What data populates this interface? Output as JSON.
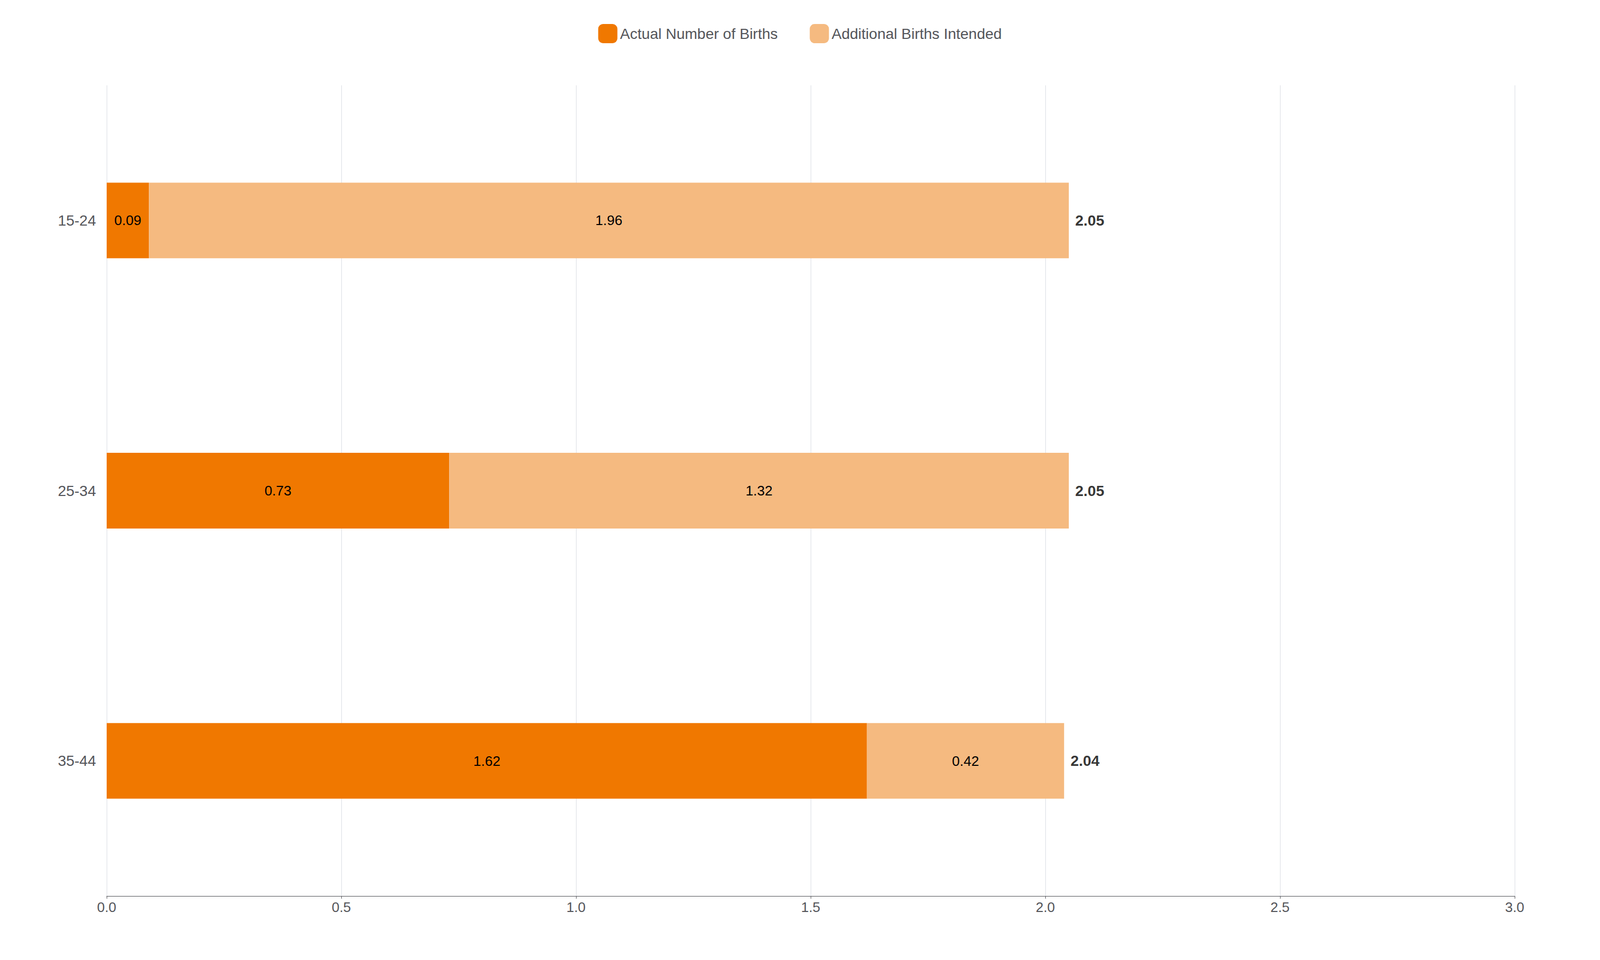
{
  "chart_data": {
    "type": "bar",
    "orientation": "horizontal",
    "stacked": true,
    "data_labels": true,
    "grid": true,
    "legend": "top",
    "categories": [
      "15-24",
      "25-34",
      "35-44"
    ],
    "series": [
      {
        "name": "Actual Number of Births",
        "color": "#F07800",
        "values": [
          0.09,
          0.73,
          1.62
        ]
      },
      {
        "name": "Additional Births Intended",
        "color": "#F5BA80",
        "values": [
          1.96,
          1.32,
          0.42
        ]
      }
    ],
    "totals": [
      2.05,
      2.05,
      2.04
    ],
    "xlim": [
      0,
      3.0
    ],
    "xticks": [
      {
        "value": 0,
        "label": "0.0"
      },
      0.5,
      {
        "value": 1,
        "label": "1.0"
      },
      1.5,
      {
        "value": 2,
        "label": "2.0"
      },
      2.5,
      {
        "value": 3,
        "label": "3.0"
      }
    ]
  }
}
